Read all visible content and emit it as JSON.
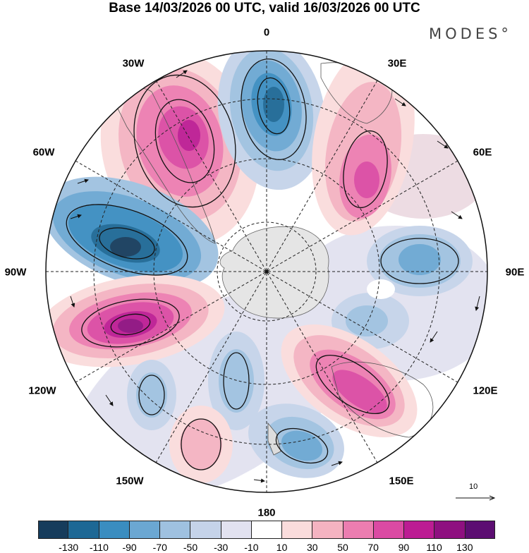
{
  "title": "Base 14/03/2026 00 UTC, valid 16/03/2026 00 UTC",
  "brand": "MODES°",
  "longitude_labels": {
    "lon_0": "0",
    "lon_30e": "30E",
    "lon_60e": "60E",
    "lon_90e": "90E",
    "lon_120e": "120E",
    "lon_150e": "150E",
    "lon_180": "180",
    "lon_150w": "150W",
    "lon_120w": "120W",
    "lon_90w": "90W",
    "lon_60w": "60W",
    "lon_30w": "30W"
  },
  "reference_vector": {
    "label": "10"
  },
  "colorbar": {
    "ticks": [
      "-130",
      "-110",
      "-90",
      "-70",
      "-50",
      "-30",
      "-10",
      "10",
      "30",
      "50",
      "70",
      "90",
      "110",
      "130"
    ],
    "colors": [
      "#163c5c",
      "#1d6895",
      "#3a8dc0",
      "#6ba7d2",
      "#9fc1e0",
      "#c5d3e9",
      "#e2e2f0",
      "#ffffff",
      "#fadcdc",
      "#f4b3c1",
      "#ec7db0",
      "#db4aa3",
      "#bc1c93",
      "#8e1080",
      "#5c0e72"
    ]
  }
}
